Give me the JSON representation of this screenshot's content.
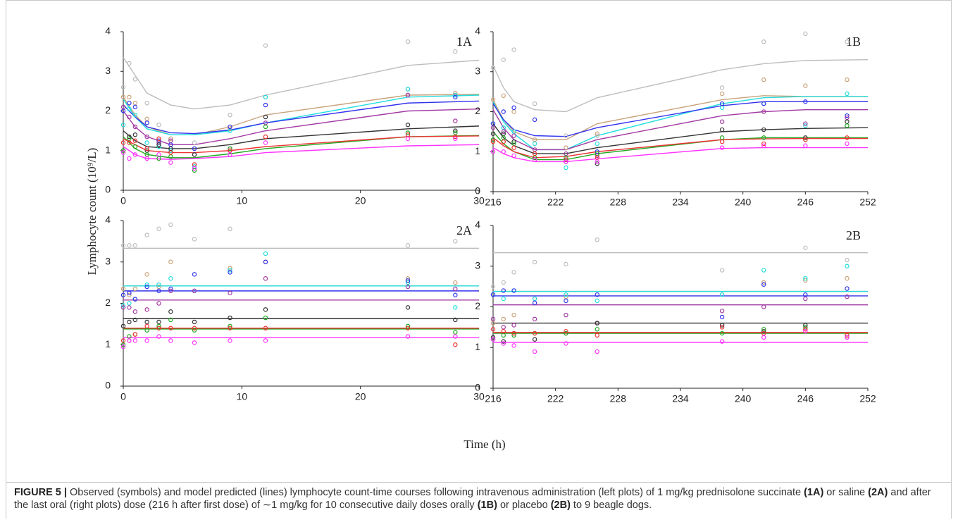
{
  "figure": {
    "ylabel": "Lymphocyte count (10⁹/L)",
    "xlabel": "Time (h)",
    "caption": [
      {
        "text": "FIGURE 5 |",
        "bold": true
      },
      {
        "text": " Observed (symbols) and model predicted (lines) lymphocyte count-time courses following intravenous administration (left plots) of 1 mg/kg prednisolone succinate ",
        "bold": false
      },
      {
        "text": "(1A)",
        "bold": true
      },
      {
        "text": " or saline ",
        "bold": false
      },
      {
        "text": "(2A)",
        "bold": true
      },
      {
        "text": " and after the last oral (right plots) dose (216 h after first dose) of ∼1 mg/kg for 10 consecutive daily doses orally ",
        "bold": false
      },
      {
        "text": "(1B)",
        "bold": true
      },
      {
        "text": " or placebo ",
        "bold": false
      },
      {
        "text": "(2B)",
        "bold": true
      },
      {
        "text": " to 9 beagle dogs.",
        "bold": false
      }
    ]
  },
  "chart_data": [
    {
      "type": "line",
      "label": "1A",
      "xlim": [
        0,
        30
      ],
      "xticks": [
        0,
        10,
        20,
        30
      ],
      "ylim": [
        0,
        4
      ],
      "yticks": [
        0,
        1,
        2,
        3,
        4
      ],
      "x": [
        0,
        1,
        2,
        4,
        6,
        9,
        12,
        24,
        30
      ],
      "obs_x": [
        0,
        0.5,
        1,
        2,
        3,
        4,
        6,
        9,
        12,
        24,
        28
      ],
      "series": [
        {
          "color": "#bdbdbd",
          "values": [
            3.35,
            2.9,
            2.45,
            2.15,
            2.05,
            2.15,
            2.4,
            3.15,
            3.28
          ],
          "observed": [
            2.6,
            3.2,
            2.8,
            2.2,
            1.65,
            1.3,
            1.2,
            1.9,
            3.65,
            3.75,
            3.5
          ]
        },
        {
          "color": "#c9a27a",
          "values": [
            2.35,
            1.9,
            1.6,
            1.4,
            1.4,
            1.6,
            1.9,
            2.4,
            2.42
          ],
          "observed": [
            2.35,
            2.35,
            2.2,
            1.8,
            1.3,
            1.3,
            1.05,
            1.55,
            2.35,
            2.55,
            2.45
          ]
        },
        {
          "color": "#22dddd",
          "values": [
            2.3,
            1.85,
            1.55,
            1.4,
            1.4,
            1.5,
            1.7,
            2.35,
            2.4
          ],
          "observed": [
            1.65,
            2.05,
            1.9,
            1.2,
            1.1,
            1.0,
            0.6,
            1.5,
            2.35,
            2.55,
            2.4
          ]
        },
        {
          "color": "#3333ee",
          "values": [
            2.15,
            1.85,
            1.6,
            1.45,
            1.43,
            1.52,
            1.7,
            2.2,
            2.25
          ],
          "observed": [
            2.0,
            2.2,
            2.1,
            1.7,
            1.25,
            1.15,
            1.05,
            1.6,
            2.15,
            2.4,
            2.35
          ]
        },
        {
          "color": "#a33aa3",
          "values": [
            2.0,
            1.6,
            1.35,
            1.15,
            1.15,
            1.3,
            1.5,
            2.0,
            2.05
          ],
          "observed": [
            2.1,
            1.85,
            1.6,
            1.35,
            1.2,
            1.25,
            0.9,
            1.0,
            1.7,
            2.4,
            1.75
          ]
        },
        {
          "color": "#333333",
          "values": [
            1.5,
            1.25,
            1.1,
            1.05,
            1.05,
            1.15,
            1.3,
            1.55,
            1.62
          ],
          "observed": [
            1.0,
            1.35,
            1.4,
            1.0,
            1.15,
            1.05,
            0.9,
            1.05,
            1.85,
            1.65,
            1.5
          ]
        },
        {
          "color": "#22aa22",
          "values": [
            1.35,
            1.05,
            0.9,
            0.82,
            0.82,
            0.92,
            1.05,
            1.35,
            1.38
          ],
          "observed": [
            1.0,
            1.3,
            1.1,
            0.9,
            0.8,
            0.85,
            0.5,
            1.05,
            1.6,
            1.45,
            1.45
          ]
        },
        {
          "color": "#ee3333",
          "values": [
            1.3,
            1.15,
            1.0,
            0.95,
            0.95,
            1.0,
            1.1,
            1.35,
            1.37
          ],
          "observed": [
            1.2,
            1.2,
            1.25,
            1.05,
            1.3,
            0.95,
            0.65,
            1.0,
            1.35,
            1.4,
            1.35
          ]
        },
        {
          "color": "#ff33ff",
          "values": [
            1.1,
            0.9,
            0.8,
            0.78,
            0.8,
            0.85,
            0.95,
            1.12,
            1.15
          ],
          "observed": [
            0.95,
            0.8,
            0.9,
            0.8,
            0.9,
            0.7,
            0.55,
            0.9,
            1.2,
            1.3,
            1.3
          ]
        }
      ]
    },
    {
      "type": "line",
      "label": "1B",
      "xlim": [
        216,
        252
      ],
      "xticks": [
        216,
        222,
        228,
        234,
        240,
        246,
        252
      ],
      "ylim": [
        0,
        4
      ],
      "yticks": [
        0,
        1,
        2,
        3,
        4
      ],
      "x": [
        216,
        217,
        218,
        220,
        223,
        226,
        238,
        242,
        246,
        252
      ],
      "obs_x": [
        216,
        217,
        218,
        220,
        223,
        226,
        238,
        242,
        246,
        250
      ],
      "series": [
        {
          "color": "#bdbdbd",
          "values": [
            3.15,
            2.6,
            2.25,
            2.05,
            2.0,
            2.35,
            3.05,
            3.2,
            3.28,
            3.3
          ],
          "observed": [
            3.1,
            3.3,
            3.55,
            2.2,
            1.4,
            1.4,
            2.6,
            3.75,
            3.95,
            3.75
          ]
        },
        {
          "color": "#c9a27a",
          "values": [
            2.3,
            1.8,
            1.5,
            1.3,
            1.3,
            1.7,
            2.3,
            2.4,
            2.38,
            2.38
          ],
          "observed": [
            2.3,
            2.4,
            2.0,
            1.3,
            1.1,
            1.45,
            2.45,
            2.8,
            2.65,
            2.8
          ]
        },
        {
          "color": "#22dddd",
          "values": [
            2.25,
            1.75,
            1.45,
            1.05,
            1.05,
            1.4,
            2.2,
            2.35,
            2.38,
            2.38
          ],
          "observed": [
            1.7,
            1.6,
            1.5,
            1.2,
            0.6,
            1.2,
            2.1,
            2.2,
            1.65,
            2.45
          ]
        },
        {
          "color": "#3333ee",
          "values": [
            2.2,
            1.8,
            1.55,
            1.4,
            1.38,
            1.6,
            2.15,
            2.25,
            2.25,
            2.25
          ],
          "observed": [
            1.7,
            2.0,
            2.1,
            1.8,
            0.8,
            1.0,
            2.2,
            2.2,
            2.25,
            1.9
          ]
        },
        {
          "color": "#a33aa3",
          "values": [
            2.05,
            1.6,
            1.3,
            1.05,
            1.05,
            1.3,
            1.9,
            2.0,
            2.05,
            2.05
          ],
          "observed": [
            1.6,
            1.5,
            1.4,
            1.05,
            0.95,
            0.9,
            1.75,
            2.0,
            1.7,
            1.85
          ]
        },
        {
          "color": "#333333",
          "values": [
            1.7,
            1.35,
            1.15,
            0.95,
            0.95,
            1.1,
            1.5,
            1.55,
            1.58,
            1.6
          ],
          "observed": [
            1.45,
            1.45,
            1.25,
            0.85,
            0.75,
            0.7,
            1.55,
            1.55,
            1.35,
            1.75
          ]
        },
        {
          "color": "#22aa22",
          "values": [
            1.5,
            1.2,
            1.0,
            0.8,
            0.8,
            0.95,
            1.3,
            1.35,
            1.35,
            1.35
          ],
          "observed": [
            1.3,
            1.35,
            1.2,
            0.85,
            0.85,
            0.95,
            1.35,
            1.35,
            1.3,
            1.65
          ]
        },
        {
          "color": "#ee3333",
          "values": [
            1.35,
            1.15,
            1.0,
            0.85,
            0.88,
            1.0,
            1.3,
            1.32,
            1.33,
            1.33
          ],
          "observed": [
            1.25,
            1.25,
            1.1,
            0.95,
            0.8,
            0.85,
            1.25,
            1.2,
            1.3,
            1.35
          ]
        },
        {
          "color": "#ff33ff",
          "values": [
            1.1,
            0.95,
            0.85,
            0.75,
            0.75,
            0.82,
            1.08,
            1.1,
            1.1,
            1.1
          ],
          "observed": [
            1.0,
            1.0,
            0.9,
            0.8,
            0.75,
            0.75,
            1.1,
            1.15,
            1.15,
            1.2
          ]
        }
      ]
    },
    {
      "type": "line",
      "label": "2A",
      "xlim": [
        0,
        30
      ],
      "xticks": [
        0,
        10,
        20,
        30
      ],
      "ylim": [
        0,
        4
      ],
      "yticks": [
        0,
        1,
        2,
        3,
        4
      ],
      "x": [
        0,
        30
      ],
      "obs_x": [
        0,
        0.5,
        1,
        2,
        3,
        4,
        6,
        9,
        12,
        24,
        28
      ],
      "series": [
        {
          "color": "#bdbdbd",
          "values": [
            3.33,
            3.33
          ],
          "observed": [
            3.4,
            3.4,
            3.4,
            3.65,
            3.8,
            3.9,
            3.55,
            3.8,
            3.0,
            3.4,
            3.5
          ]
        },
        {
          "color": "#c9a27a",
          "values": [
            2.42,
            2.42
          ],
          "observed": [
            2.35,
            2.2,
            2.35,
            2.7,
            2.4,
            3.0,
            2.3,
            2.85,
            3.0,
            2.6,
            2.5
          ]
        },
        {
          "color": "#22dddd",
          "values": [
            2.42,
            2.42
          ],
          "observed": [
            1.95,
            2.0,
            2.1,
            2.45,
            2.45,
            2.6,
            2.3,
            2.8,
            3.2,
            2.5,
            1.9
          ]
        },
        {
          "color": "#3333ee",
          "values": [
            2.3,
            2.3
          ],
          "observed": [
            2.2,
            2.25,
            2.1,
            2.4,
            2.3,
            2.35,
            2.7,
            2.75,
            3.0,
            2.55,
            2.2
          ]
        },
        {
          "color": "#a33aa3",
          "values": [
            2.08,
            2.08
          ],
          "observed": [
            1.9,
            1.9,
            1.8,
            1.85,
            2.0,
            2.3,
            2.3,
            2.25,
            2.6,
            2.4,
            2.35
          ]
        },
        {
          "color": "#333333",
          "values": [
            1.63,
            1.63
          ],
          "observed": [
            1.45,
            1.55,
            1.6,
            1.55,
            1.55,
            1.8,
            1.55,
            1.65,
            1.85,
            1.9,
            1.6
          ]
        },
        {
          "color": "#22aa22",
          "values": [
            1.38,
            1.38
          ],
          "observed": [
            1.0,
            1.2,
            1.25,
            1.35,
            1.45,
            1.6,
            1.35,
            1.45,
            1.65,
            1.45,
            1.3
          ]
        },
        {
          "color": "#ee3333",
          "values": [
            1.4,
            1.4
          ],
          "observed": [
            1.1,
            1.1,
            1.25,
            1.45,
            1.4,
            1.4,
            1.4,
            1.4,
            1.4,
            1.4,
            1.0
          ]
        },
        {
          "color": "#ff33ff",
          "values": [
            1.17,
            1.17
          ],
          "observed": [
            0.95,
            1.1,
            1.1,
            1.1,
            1.2,
            1.1,
            1.05,
            1.1,
            1.1,
            1.2,
            1.2
          ]
        }
      ]
    },
    {
      "type": "line",
      "label": "2B",
      "xlim": [
        216,
        252
      ],
      "xticks": [
        216,
        222,
        228,
        234,
        240,
        246,
        252
      ],
      "ylim": [
        0,
        4
      ],
      "yticks": [
        0,
        1,
        2,
        3,
        4
      ],
      "x": [
        216,
        252
      ],
      "obs_x": [
        216,
        217,
        218,
        220,
        223,
        226,
        238,
        242,
        246,
        250
      ],
      "series": [
        {
          "color": "#bdbdbd",
          "values": [
            3.33,
            3.33
          ],
          "observed": [
            2.5,
            2.6,
            2.85,
            3.1,
            3.05,
            3.65,
            2.9,
            2.6,
            3.45,
            3.15
          ]
        },
        {
          "color": "#c9a27a",
          "values": [
            2.38,
            2.38
          ],
          "observed": [
            1.6,
            1.7,
            1.8,
            2.2,
            2.25,
            1.6,
            2.3,
            2.6,
            2.65,
            2.7
          ]
        },
        {
          "color": "#22dddd",
          "values": [
            2.38,
            2.38
          ],
          "observed": [
            2.3,
            2.2,
            2.4,
            2.2,
            2.3,
            2.15,
            2.3,
            2.9,
            2.7,
            3.0
          ]
        },
        {
          "color": "#3333ee",
          "values": [
            2.27,
            2.27
          ],
          "observed": [
            2.3,
            2.4,
            2.4,
            2.1,
            2.15,
            2.3,
            1.75,
            2.55,
            2.3,
            2.45
          ]
        },
        {
          "color": "#a33aa3",
          "values": [
            2.05,
            2.05
          ],
          "observed": [
            1.7,
            1.5,
            1.55,
            1.7,
            1.8,
            1.6,
            1.9,
            2.0,
            2.2,
            2.25
          ]
        },
        {
          "color": "#333333",
          "values": [
            1.6,
            1.6
          ],
          "observed": [
            1.25,
            1.15,
            1.35,
            1.2,
            1.35,
            1.6,
            1.55,
            1.4,
            1.55,
            1.25
          ]
        },
        {
          "color": "#22aa22",
          "values": [
            1.35,
            1.35
          ],
          "observed": [
            1.2,
            1.3,
            1.3,
            1.35,
            1.35,
            1.45,
            1.35,
            1.45,
            1.5,
            1.3
          ]
        },
        {
          "color": "#ee3333",
          "values": [
            1.37,
            1.37
          ],
          "observed": [
            1.45,
            1.4,
            1.35,
            1.35,
            1.4,
            1.3,
            1.5,
            1.35,
            1.45,
            1.3
          ]
        },
        {
          "color": "#ff33ff",
          "values": [
            1.13,
            1.13
          ],
          "observed": [
            1.2,
            1.1,
            1.05,
            0.9,
            1.1,
            0.9,
            1.15,
            1.25,
            1.4,
            1.25
          ]
        }
      ]
    }
  ]
}
